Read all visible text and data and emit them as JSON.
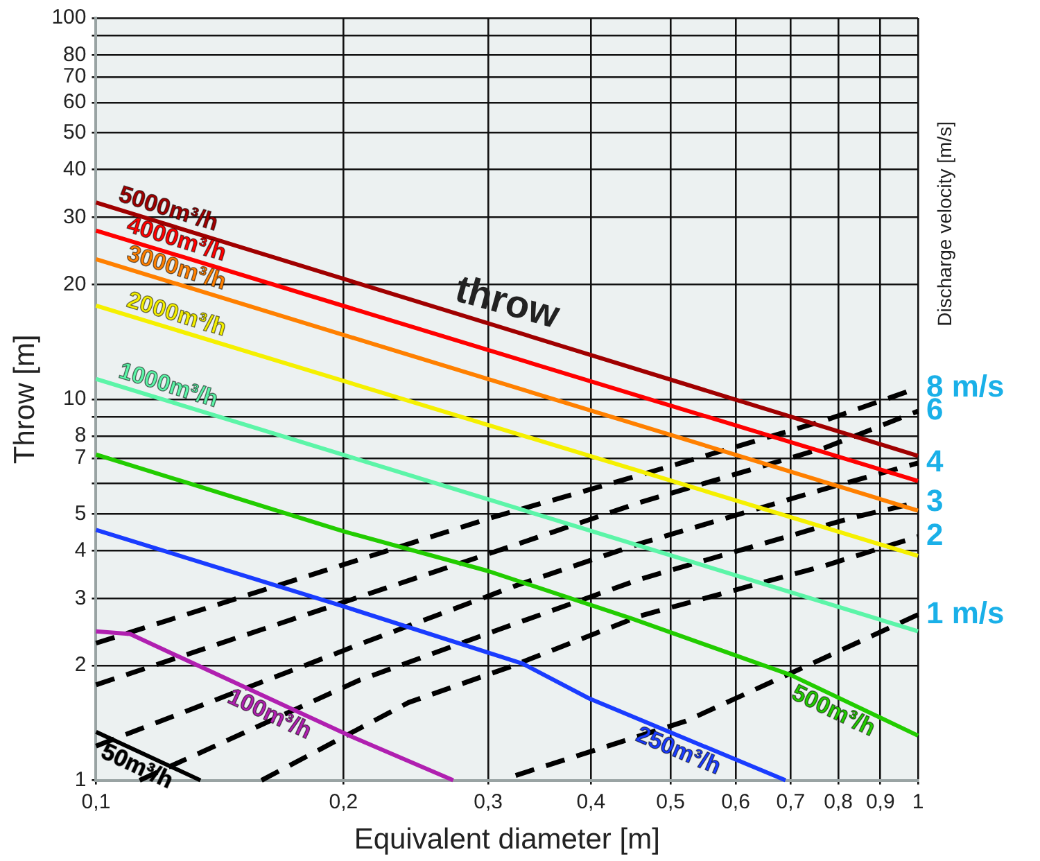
{
  "chart_data": {
    "type": "line",
    "xlabel": "Equivalent diameter [m]",
    "ylabel": "Throw [m]",
    "y2label": "Discharge velocity [m/s]",
    "log": "xy",
    "grid": true,
    "legend": false,
    "marker": "none",
    "xlim": [
      0.1,
      1
    ],
    "ylim": [
      1,
      100
    ],
    "xticks": [
      {
        "value": 0.1,
        "label": "0,1"
      },
      {
        "value": 0.2,
        "label": "0,2"
      },
      {
        "value": 0.3,
        "label": "0,3"
      },
      {
        "value": 0.4,
        "label": "0,4"
      },
      {
        "value": 0.5,
        "label": "0,5"
      },
      {
        "value": 0.6,
        "label": "0,6"
      },
      {
        "value": 0.7,
        "label": "0,7"
      },
      {
        "value": 0.8,
        "label": "0,8"
      },
      {
        "value": 0.9,
        "label": "0,9"
      },
      1
    ],
    "yticks": [
      1,
      2,
      3,
      4,
      5,
      {
        "value": 6,
        "label": null
      },
      7,
      8,
      {
        "value": 9,
        "label": null
      },
      10,
      20,
      30,
      40,
      50,
      60,
      70,
      80,
      {
        "value": 90,
        "label": null
      },
      100
    ],
    "annotations": [
      "throw"
    ],
    "series": [
      {
        "name": "5000m³/h",
        "color": "#a00000",
        "line_style": "solid",
        "x": [
          0.1,
          1
        ],
        "values": [
          32.8,
          7.1
        ]
      },
      {
        "name": "4000m³/h",
        "color": "#ff0000",
        "line_style": "solid",
        "x": [
          0.1,
          1
        ],
        "values": [
          27.7,
          6.1
        ]
      },
      {
        "name": "3000m³/h",
        "color": "#ff8000",
        "line_style": "solid",
        "x": [
          0.1,
          1
        ],
        "values": [
          23.3,
          5.1
        ]
      },
      {
        "name": "2000m³/h",
        "color": "#f5f000",
        "line_style": "solid",
        "x": [
          0.1,
          1
        ],
        "values": [
          17.6,
          3.88
        ]
      },
      {
        "name": "1000m³/h",
        "color": "#5cf5a8",
        "line_style": "solid",
        "x": [
          0.1,
          1
        ],
        "values": [
          11.3,
          2.46
        ]
      },
      {
        "name": "500m³/h",
        "color": "#22cc00",
        "line_style": "solid",
        "x": [
          0.1,
          0.2,
          0.3,
          0.45,
          0.7,
          1
        ],
        "values": [
          7.16,
          4.5,
          3.54,
          2.65,
          1.89,
          1.31
        ]
      },
      {
        "name": "250m³/h",
        "color": "#1a3cff",
        "line_style": "solid",
        "x": [
          0.1,
          0.2,
          0.331,
          0.398,
          0.69
        ],
        "values": [
          4.54,
          2.86,
          2.02,
          1.64,
          1
        ]
      },
      {
        "name": "100m³/h",
        "color": "#b020b0",
        "line_style": "solid",
        "x": [
          0.1,
          0.11,
          0.153,
          0.205,
          0.272
        ],
        "values": [
          2.46,
          2.42,
          1.74,
          1.3,
          1
        ]
      },
      {
        "name": "50m³/h",
        "color": "#000000",
        "line_style": "solid",
        "x": [
          0.1,
          0.134
        ],
        "values": [
          1.34,
          1
        ]
      },
      {
        "name": "8 m/s",
        "color": "#000000",
        "line_style": "dashed",
        "x": [
          0.1,
          0.303,
          0.459,
          0.771,
          1
        ],
        "values": [
          2.29,
          4.89,
          6.32,
          8.8,
          10.7
        ]
      },
      {
        "name": "6",
        "color": "#000000",
        "line_style": "dashed",
        "x": [
          0.1,
          0.324,
          0.459,
          0.771,
          1
        ],
        "values": [
          1.78,
          4.15,
          5.36,
          7.46,
          9.3
        ]
      },
      {
        "name": "4",
        "color": "#000000",
        "line_style": "dashed",
        "x": [
          0.1,
          0.211,
          0.324,
          0.459,
          0.771,
          1
        ],
        "values": [
          1.23,
          2.29,
          3.24,
          4.18,
          5.82,
          6.8
        ]
      },
      {
        "name": "3",
        "color": "#000000",
        "line_style": "dashed",
        "x": [
          0.113,
          0.209,
          0.308,
          0.459,
          0.833,
          1
        ],
        "values": [
          1,
          1.83,
          2.48,
          3.37,
          4.89,
          5.36
        ]
      },
      {
        "name": "2",
        "color": "#000000",
        "line_style": "dashed",
        "x": [
          0.159,
          0.24,
          0.32,
          0.459,
          0.771,
          1
        ],
        "values": [
          1,
          1.6,
          1.99,
          2.7,
          3.66,
          4.36
        ]
      },
      {
        "name": "1 m/s",
        "color": "#000000",
        "line_style": "dashed",
        "x": [
          0.324,
          0.522,
          0.771,
          1
        ],
        "values": [
          1.03,
          1.43,
          2.1,
          2.72
        ]
      }
    ]
  }
}
